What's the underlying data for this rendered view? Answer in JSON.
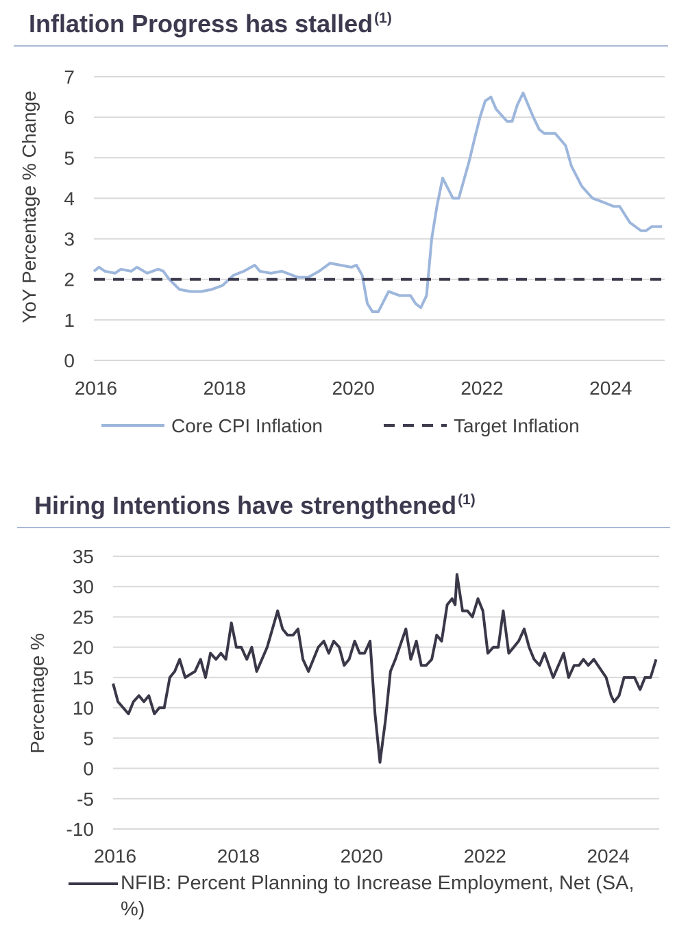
{
  "chart_data": [
    {
      "type": "line",
      "title": "Inflation Progress has stalled",
      "title_superscript": "(1)",
      "ylabel": "YoY Percentage % Change",
      "xlim": [
        2016,
        2024.87
      ],
      "xticks": [
        2016,
        2018,
        2020,
        2022,
        2024
      ],
      "ylim": [
        0,
        7
      ],
      "yticks": [
        0,
        1,
        2,
        3,
        4,
        5,
        6,
        7
      ],
      "grid": true,
      "legend": "bottom",
      "series": [
        {
          "name": "Core CPI Inflation",
          "color": "#9db6dc",
          "style": "solid",
          "x": [
            2016.0,
            2016.08,
            2016.17,
            2016.33,
            2016.42,
            2016.58,
            2016.67,
            2016.83,
            2017.0,
            2017.08,
            2017.17,
            2017.33,
            2017.5,
            2017.67,
            2017.83,
            2018.0,
            2018.17,
            2018.33,
            2018.5,
            2018.58,
            2018.75,
            2018.92,
            2019.17,
            2019.33,
            2019.5,
            2019.67,
            2019.83,
            2020.0,
            2020.08,
            2020.17,
            2020.25,
            2020.33,
            2020.42,
            2020.58,
            2020.75,
            2020.92,
            2021.0,
            2021.08,
            2021.17,
            2021.25,
            2021.33,
            2021.42,
            2021.58,
            2021.67,
            2021.83,
            2021.92,
            2022.0,
            2022.08,
            2022.17,
            2022.25,
            2022.42,
            2022.5,
            2022.58,
            2022.67,
            2022.83,
            2022.92,
            2023.0,
            2023.17,
            2023.33,
            2023.42,
            2023.58,
            2023.75,
            2023.92,
            2024.08,
            2024.17,
            2024.33,
            2024.5,
            2024.58,
            2024.67,
            2024.83
          ],
          "values": [
            2.2,
            2.3,
            2.2,
            2.15,
            2.25,
            2.2,
            2.3,
            2.15,
            2.25,
            2.2,
            2.0,
            1.75,
            1.7,
            1.7,
            1.75,
            1.85,
            2.1,
            2.2,
            2.35,
            2.2,
            2.15,
            2.2,
            2.05,
            2.05,
            2.2,
            2.4,
            2.35,
            2.3,
            2.35,
            2.1,
            1.4,
            1.2,
            1.2,
            1.7,
            1.6,
            1.6,
            1.4,
            1.3,
            1.6,
            3.0,
            3.8,
            4.5,
            4.0,
            4.0,
            4.9,
            5.5,
            6.0,
            6.4,
            6.5,
            6.2,
            5.9,
            5.9,
            6.3,
            6.6,
            6.0,
            5.7,
            5.6,
            5.6,
            5.3,
            4.8,
            4.3,
            4.0,
            3.9,
            3.8,
            3.8,
            3.4,
            3.2,
            3.2,
            3.3,
            3.3
          ]
        },
        {
          "name": "Target Inflation",
          "color": "#3c3a4c",
          "style": "dashed",
          "x": [
            2016.0,
            2024.87
          ],
          "values": [
            2,
            2
          ]
        }
      ]
    },
    {
      "type": "line",
      "title": "Hiring Intentions have strengthened",
      "title_superscript": "(1)",
      "ylabel": "Percentage %",
      "xlim": [
        2016,
        2024.86
      ],
      "xticks": [
        2016,
        2018,
        2020,
        2022,
        2024
      ],
      "ylim": [
        -10,
        35
      ],
      "yticks": [
        -10,
        -5,
        0,
        5,
        10,
        15,
        20,
        25,
        30,
        35
      ],
      "grid": true,
      "legend": "bottom",
      "series": [
        {
          "name": "NFIB: Percent Planning to Increase Employment, Net (SA, %)",
          "color": "#3a3848",
          "style": "solid",
          "x": [
            2016.0,
            2016.08,
            2016.25,
            2016.33,
            2016.42,
            2016.5,
            2016.58,
            2016.67,
            2016.75,
            2016.83,
            2016.92,
            2017.0,
            2017.08,
            2017.17,
            2017.33,
            2017.42,
            2017.5,
            2017.58,
            2017.67,
            2017.75,
            2017.83,
            2017.92,
            2018.0,
            2018.08,
            2018.17,
            2018.25,
            2018.33,
            2018.5,
            2018.67,
            2018.75,
            2018.83,
            2018.92,
            2019.0,
            2019.08,
            2019.17,
            2019.33,
            2019.42,
            2019.5,
            2019.58,
            2019.67,
            2019.75,
            2019.83,
            2019.92,
            2020.0,
            2020.08,
            2020.17,
            2020.25,
            2020.33,
            2020.42,
            2020.5,
            2020.58,
            2020.75,
            2020.83,
            2020.92,
            2021.0,
            2021.08,
            2021.17,
            2021.25,
            2021.33,
            2021.42,
            2021.5,
            2021.55,
            2021.58,
            2021.67,
            2021.75,
            2021.83,
            2021.92,
            2022.0,
            2022.08,
            2022.17,
            2022.25,
            2022.33,
            2022.42,
            2022.5,
            2022.58,
            2022.67,
            2022.75,
            2022.83,
            2022.92,
            2023.0,
            2023.14,
            2023.31,
            2023.39,
            2023.48,
            2023.56,
            2023.63,
            2023.71,
            2023.8,
            2024.0,
            2024.08,
            2024.13,
            2024.21,
            2024.29,
            2024.46,
            2024.55,
            2024.63,
            2024.72,
            2024.81
          ],
          "values": [
            14,
            11,
            9,
            11,
            12,
            11,
            12,
            9,
            10,
            10,
            15,
            16,
            18,
            15,
            16,
            18,
            15,
            19,
            18,
            19,
            18,
            24,
            20,
            20,
            18,
            20,
            16,
            20,
            26,
            23,
            22,
            22,
            23,
            18,
            16,
            20,
            21,
            19,
            21,
            20,
            17,
            18,
            21,
            19,
            19,
            21,
            9,
            1,
            8,
            16,
            18,
            23,
            18,
            21,
            17,
            17,
            18,
            22,
            21,
            27,
            28,
            27,
            32,
            26,
            26,
            25,
            28,
            26,
            19,
            20,
            20,
            26,
            19,
            20,
            21,
            23,
            20,
            18,
            17,
            19,
            15,
            19,
            15,
            17,
            17,
            18,
            17,
            18,
            15,
            12,
            11,
            12,
            15,
            15,
            13,
            15,
            15,
            18
          ]
        }
      ]
    }
  ]
}
